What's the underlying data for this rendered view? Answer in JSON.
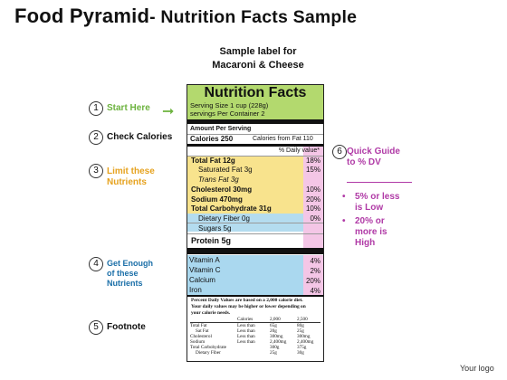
{
  "title": {
    "part1": "Food Pyramid",
    "part2": "- Nutrition Facts Sample"
  },
  "subtitle": [
    "Sample label for",
    "Macaroni & Cheese"
  ],
  "steps": [
    {
      "num": "1",
      "label": [
        "Start Here"
      ],
      "color": "#6db33f"
    },
    {
      "num": "2",
      "label": [
        "Check Calories"
      ],
      "color": "#111111"
    },
    {
      "num": "3",
      "label": [
        "Limit these",
        "Nutrients"
      ],
      "color": "#e6a21e"
    },
    {
      "num": "4",
      "label": [
        "Get Enough",
        "of these",
        "Nutrients"
      ],
      "color": "#1b6fa8"
    },
    {
      "num": "5",
      "label": [
        "Footnote"
      ],
      "color": "#111111"
    },
    {
      "num": "6",
      "label": [
        "Quick Guide",
        "to % DV"
      ],
      "color": "#b03aa6"
    }
  ],
  "guide_bullets": [
    {
      "marker": "•",
      "lines": [
        "5% or less",
        "is Low"
      ]
    },
    {
      "marker": "•",
      "lines": [
        "20% or",
        "more is",
        "High"
      ]
    }
  ],
  "label": {
    "heading": "Nutrition Facts",
    "serving_size": "Serving Size  1 cup (228g)",
    "servings_per": "servings Per Container 2",
    "amount_per": "Amount Per Serving",
    "calories": "Calories 250",
    "calories_fat": "Calories  from  Fat 110",
    "dv_header": "% Daily value*",
    "rows": [
      {
        "name": "Total Fat 12g",
        "pct": "18%"
      },
      {
        "name": "Saturated Fat 3g",
        "pct": "15%"
      },
      {
        "name": "Trans Fat 3g",
        "pct": ""
      },
      {
        "name": "Cholesterol 30mg",
        "pct": "10%"
      },
      {
        "name": "Sodium 470mg",
        "pct": "20%"
      },
      {
        "name": "Total Carbohydrate 31g",
        "pct": "10%"
      },
      {
        "name": "Dietary Fiber 0g",
        "pct": "0%"
      },
      {
        "name": "Sugars 5g",
        "pct": ""
      },
      {
        "name": "Protein 5g",
        "pct": ""
      },
      {
        "name": "Vitamin A",
        "pct": "4%"
      },
      {
        "name": "Vitamin C",
        "pct": "2%"
      },
      {
        "name": "Calcium",
        "pct": "20%"
      },
      {
        "name": "Iron",
        "pct": "4%"
      }
    ],
    "footnote": [
      "Percent Daily Values are based on a 2,000 calorie diet.",
      "Your daily values may be higher or lower depending on",
      "your calorie needs."
    ],
    "table_header": [
      "Calories",
      "2,000",
      "2,500"
    ],
    "table_rows": [
      [
        "Total Fat",
        "Less than",
        "65g",
        "80g"
      ],
      [
        "Sat Fat",
        "Less than",
        "20g",
        "25g"
      ],
      [
        "Cholesterol",
        "Less than",
        "300mg",
        "300mg"
      ],
      [
        "Sodium",
        "Less than",
        "2,400mg",
        "2,400mg"
      ],
      [
        "Total Carbohydrate",
        "",
        "300g",
        "375g"
      ],
      [
        "Dietary Fiber",
        "",
        "25g",
        "30g"
      ]
    ]
  },
  "logo": "Your logo",
  "colors": {
    "green": "#b3d96e",
    "yellow": "#f8e38d",
    "blue": "#b4dcef",
    "pink": "#f4c6e6",
    "purple": "#b03aa6"
  }
}
